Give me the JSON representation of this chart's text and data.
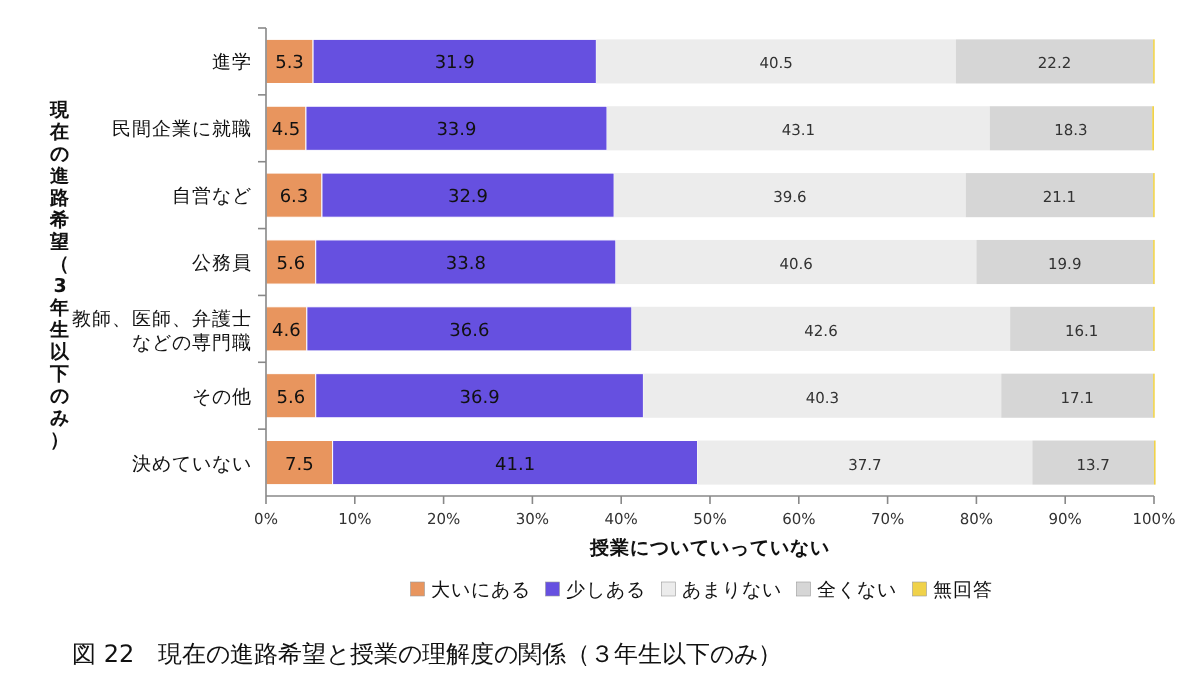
{
  "chart_data": {
    "type": "bar",
    "orientation": "horizontal",
    "stacked": true,
    "title": "図 22　現在の進路希望と授業の理解度の関係（３年生以下のみ）",
    "xlabel": "授業についていっていない",
    "ylabel": "現在の進路希望（3年生以下のみ）",
    "categories": [
      "進学",
      "民間企業に就職",
      "自営など",
      "公務員",
      "教師、医師、弁護士などの専門職",
      "その他",
      "決めていない"
    ],
    "series": [
      {
        "name": "大いにある",
        "color": "#e8955e",
        "values": [
          5.3,
          4.5,
          6.3,
          5.6,
          4.6,
          5.6,
          7.5
        ],
        "value_labels": [
          "5.3",
          "4.5",
          "6.3",
          "5.6",
          "4.6",
          "5.6",
          "7.5"
        ]
      },
      {
        "name": "少しある",
        "color": "#6650e0",
        "values": [
          31.9,
          33.9,
          32.9,
          33.8,
          36.6,
          36.9,
          41.1
        ],
        "value_labels": [
          "31.9",
          "33.9",
          "32.9",
          "33.8",
          "36.6",
          "36.9",
          "41.1"
        ]
      },
      {
        "name": "あまりない",
        "color": "#ececec",
        "values": [
          40.5,
          43.1,
          39.6,
          40.6,
          42.6,
          40.3,
          37.7
        ],
        "value_labels": [
          "40.5",
          "43.1",
          "39.6",
          "40.6",
          "42.6",
          "40.3",
          "37.7"
        ]
      },
      {
        "name": "全くない",
        "color": "#d6d6d6",
        "values": [
          22.2,
          18.3,
          21.1,
          19.9,
          16.1,
          17.1,
          13.7
        ],
        "value_labels": [
          "22.2",
          "18.3",
          "21.1",
          "19.9",
          "16.1",
          "17.1",
          "13.7"
        ]
      },
      {
        "name": "無回答",
        "color": "#f0d24a",
        "values": [
          0.1,
          0.2,
          0.1,
          0.1,
          0.1,
          0.1,
          0.0
        ]
      }
    ],
    "xlim": [
      0,
      100
    ],
    "xticks": [
      {
        "value": 0,
        "label": "0%"
      },
      {
        "value": 10,
        "label": "10%"
      },
      {
        "value": 20,
        "label": "20%"
      },
      {
        "value": 30,
        "label": "30%"
      },
      {
        "value": 40,
        "label": "40%"
      },
      {
        "value": 50,
        "label": "50%"
      },
      {
        "value": 60,
        "label": "60%"
      },
      {
        "value": 70,
        "label": "70%"
      },
      {
        "value": 80,
        "label": "80%"
      },
      {
        "value": 90,
        "label": "90%"
      },
      {
        "value": 100,
        "label": "100%"
      }
    ],
    "legend": "bottom"
  }
}
